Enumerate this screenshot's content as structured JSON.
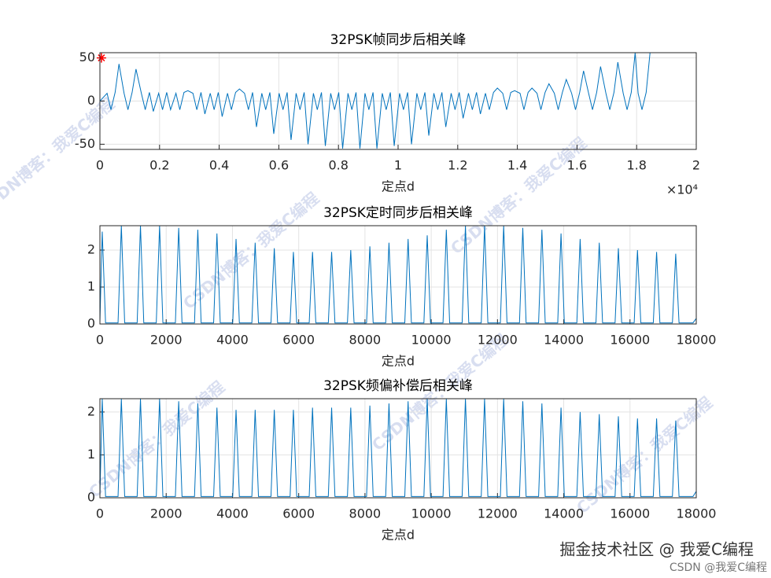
{
  "chart_data": [
    {
      "type": "line",
      "title": "32PSK帧同步后相关峰",
      "xlabel": "定点d",
      "x_multiplier": "×10⁴",
      "xlim": [
        0,
        2
      ],
      "xticks": [
        0,
        0.2,
        0.4,
        0.6,
        0.8,
        1,
        1.2,
        1.4,
        1.6,
        1.8,
        2
      ],
      "ylim": [
        -56,
        56
      ],
      "yticks": [
        -50,
        0,
        50
      ],
      "grid": true,
      "series": [
        {
          "color": "#0072bd",
          "x": [
            0,
            0.024,
            0.037,
            0.051,
            0.064,
            0.081,
            0.094,
            0.108,
            0.121,
            0.139,
            0.152,
            0.166,
            0.179,
            0.197,
            0.21,
            0.224,
            0.237,
            0.255,
            0.268,
            0.282,
            0.295,
            0.312,
            0.325,
            0.339,
            0.352,
            0.37,
            0.383,
            0.397,
            0.41,
            0.428,
            0.441,
            0.455,
            0.468,
            0.485,
            0.498,
            0.512,
            0.525,
            0.543,
            0.556,
            0.57,
            0.583,
            0.601,
            0.614,
            0.628,
            0.641,
            0.658,
            0.671,
            0.685,
            0.698,
            0.716,
            0.729,
            0.743,
            0.756,
            0.774,
            0.787,
            0.801,
            0.814,
            0.832,
            0.845,
            0.859,
            0.872,
            0.889,
            0.902,
            0.916,
            0.929,
            0.947,
            0.96,
            0.974,
            0.987,
            1.005,
            1.018,
            1.032,
            1.045,
            1.063,
            1.076,
            1.09,
            1.103,
            1.12,
            1.133,
            1.147,
            1.16,
            1.178,
            1.191,
            1.205,
            1.218,
            1.236,
            1.249,
            1.263,
            1.276,
            1.293,
            1.306,
            1.32,
            1.333,
            1.351,
            1.364,
            1.378,
            1.391,
            1.409,
            1.422,
            1.436,
            1.449,
            1.466,
            1.479,
            1.493,
            1.506,
            1.524,
            1.537,
            1.551,
            1.564,
            1.582,
            1.595,
            1.609,
            1.622,
            1.639,
            1.652,
            1.666,
            1.679,
            1.697,
            1.71,
            1.724,
            1.737,
            1.755,
            1.768,
            1.782,
            1.795,
            1.805,
            1.818,
            1.832,
            1.845
          ],
          "values": [
            0,
            9,
            -10,
            10,
            43,
            9,
            -10,
            10,
            37,
            9,
            -10,
            10,
            -12,
            9,
            -10,
            10,
            -10,
            9,
            -10,
            10,
            12,
            9,
            -10,
            10,
            -15,
            9,
            -10,
            10,
            -18,
            9,
            -10,
            10,
            14,
            9,
            -10,
            10,
            -30,
            9,
            -10,
            10,
            -38,
            9,
            -10,
            10,
            -45,
            9,
            -10,
            10,
            -50,
            9,
            -10,
            10,
            -52,
            9,
            -10,
            10,
            -55,
            9,
            -10,
            10,
            -55,
            9,
            -10,
            10,
            -55,
            9,
            -10,
            10,
            -52,
            9,
            -10,
            10,
            -50,
            9,
            -10,
            10,
            -40,
            9,
            -10,
            10,
            -30,
            9,
            -10,
            10,
            -20,
            9,
            -10,
            10,
            -15,
            9,
            -10,
            10,
            15,
            9,
            -10,
            10,
            12,
            9,
            -10,
            10,
            15,
            9,
            -10,
            10,
            20,
            9,
            -10,
            10,
            25,
            9,
            -10,
            10,
            35,
            9,
            -10,
            10,
            40,
            9,
            -10,
            10,
            45,
            9,
            -10,
            10,
            56,
            9,
            -10,
            10,
            56
          ]
        },
        {
          "color": "#ff0000",
          "marker": "star",
          "x": [
            0.005
          ],
          "values": [
            50
          ]
        }
      ]
    },
    {
      "type": "line",
      "title": "32PSK定时同步后相关峰",
      "xlabel": "定点d",
      "xlim": [
        0,
        18000
      ],
      "xticks": [
        0,
        2000,
        4000,
        6000,
        8000,
        10000,
        12000,
        14000,
        16000,
        18000
      ],
      "ylim": [
        0,
        2.66
      ],
      "yticks": [
        0,
        1,
        2
      ],
      "grid": true,
      "series": [
        {
          "color": "#0072bd",
          "x": [
            0,
            70,
            170,
            547,
            647,
            747,
            1124,
            1224,
            1324,
            1701,
            1801,
            1901,
            2278,
            2378,
            2478,
            2855,
            2955,
            3055,
            3432,
            3532,
            3632,
            4009,
            4109,
            4209,
            4586,
            4686,
            4786,
            5163,
            5263,
            5363,
            5740,
            5840,
            5940,
            6317,
            6417,
            6517,
            6894,
            6994,
            7094,
            7471,
            7571,
            7671,
            8048,
            8148,
            8248,
            8625,
            8725,
            8825,
            9202,
            9302,
            9402,
            9779,
            9879,
            9979,
            10356,
            10456,
            10556,
            10933,
            11033,
            11133,
            11510,
            11610,
            11710,
            12087,
            12187,
            12287,
            12664,
            12764,
            12864,
            13241,
            13341,
            13441,
            13818,
            13918,
            14018,
            14395,
            14495,
            14595,
            14972,
            15072,
            15172,
            15549,
            15649,
            15749,
            16126,
            16226,
            16326,
            16703,
            16803,
            16903,
            17280,
            17380,
            17480,
            17900,
            18000
          ],
          "values": [
            0.05,
            2.5,
            0.03,
            0.03,
            2.66,
            0.03,
            0.03,
            2.66,
            0.03,
            0.03,
            2.66,
            0.03,
            0.03,
            2.6,
            0.03,
            0.03,
            2.55,
            0.03,
            0.03,
            2.45,
            0.03,
            0.03,
            2.3,
            0.03,
            0.03,
            2.2,
            0.03,
            0.03,
            2.05,
            0.03,
            0.03,
            1.95,
            0.03,
            0.03,
            1.95,
            0.03,
            0.03,
            1.95,
            0.03,
            0.03,
            2.0,
            0.03,
            0.03,
            2.1,
            0.03,
            0.03,
            2.2,
            0.03,
            0.03,
            2.3,
            0.03,
            0.03,
            2.4,
            0.03,
            0.03,
            2.55,
            0.03,
            0.03,
            2.66,
            0.03,
            0.03,
            2.66,
            0.03,
            0.03,
            2.66,
            0.03,
            0.03,
            2.6,
            0.03,
            0.03,
            2.55,
            0.03,
            0.03,
            2.45,
            0.03,
            0.03,
            2.3,
            0.03,
            0.03,
            2.2,
            0.03,
            0.03,
            2.05,
            0.03,
            0.03,
            2.0,
            0.03,
            0.03,
            1.95,
            0.03,
            0.03,
            1.9,
            0.03,
            0.03,
            0.15
          ]
        }
      ]
    },
    {
      "type": "line",
      "title": "32PSK频偏补偿后相关峰",
      "xlabel": "定点d",
      "xlim": [
        0,
        18000
      ],
      "xticks": [
        0,
        2000,
        4000,
        6000,
        8000,
        10000,
        12000,
        14000,
        16000,
        18000
      ],
      "ylim": [
        0,
        2.31
      ],
      "yticks": [
        0,
        1,
        2
      ],
      "grid": true,
      "series": [
        {
          "color": "#0072bd",
          "x": [
            0,
            70,
            170,
            547,
            647,
            747,
            1124,
            1224,
            1324,
            1701,
            1801,
            1901,
            2278,
            2378,
            2478,
            2855,
            2955,
            3055,
            3432,
            3532,
            3632,
            4009,
            4109,
            4209,
            4586,
            4686,
            4786,
            5163,
            5263,
            5363,
            5740,
            5840,
            5940,
            6317,
            6417,
            6517,
            6894,
            6994,
            7094,
            7471,
            7571,
            7671,
            8048,
            8148,
            8248,
            8625,
            8725,
            8825,
            9202,
            9302,
            9402,
            9779,
            9879,
            9979,
            10356,
            10456,
            10556,
            10933,
            11033,
            11133,
            11510,
            11610,
            11710,
            12087,
            12187,
            12287,
            12664,
            12764,
            12864,
            13241,
            13341,
            13441,
            13818,
            13918,
            14018,
            14395,
            14495,
            14595,
            14972,
            15072,
            15172,
            15549,
            15649,
            15749,
            16126,
            16226,
            16326,
            16703,
            16803,
            16903,
            17280,
            17380,
            17480,
            17900,
            18000
          ],
          "values": [
            0.05,
            2.31,
            0.03,
            0.03,
            2.31,
            0.03,
            0.03,
            2.31,
            0.03,
            0.03,
            2.31,
            0.03,
            0.03,
            2.25,
            0.03,
            0.03,
            2.2,
            0.03,
            0.03,
            2.1,
            0.03,
            0.03,
            2.05,
            0.03,
            0.03,
            2.05,
            0.03,
            0.03,
            2.05,
            0.03,
            0.03,
            2.05,
            0.03,
            0.03,
            2.1,
            0.03,
            0.03,
            2.1,
            0.03,
            0.03,
            2.1,
            0.03,
            0.03,
            2.15,
            0.03,
            0.03,
            2.2,
            0.03,
            0.03,
            2.25,
            0.03,
            0.03,
            2.31,
            0.03,
            0.03,
            2.31,
            0.03,
            0.03,
            2.31,
            0.03,
            0.03,
            2.31,
            0.03,
            0.03,
            2.31,
            0.03,
            0.03,
            2.25,
            0.03,
            0.03,
            2.2,
            0.03,
            0.03,
            2.1,
            0.03,
            0.03,
            2.0,
            0.03,
            0.03,
            1.95,
            0.03,
            0.03,
            1.9,
            0.03,
            0.03,
            1.85,
            0.03,
            0.03,
            1.85,
            0.03,
            0.03,
            1.8,
            0.03,
            0.03,
            0.15
          ]
        }
      ]
    }
  ],
  "watermarks": {
    "diagonal": "CSDN博客：我爱C编程",
    "juejin": "掘金技术社区 @ 我爱C编程",
    "csdn": "CSDN @我爱C编程"
  }
}
